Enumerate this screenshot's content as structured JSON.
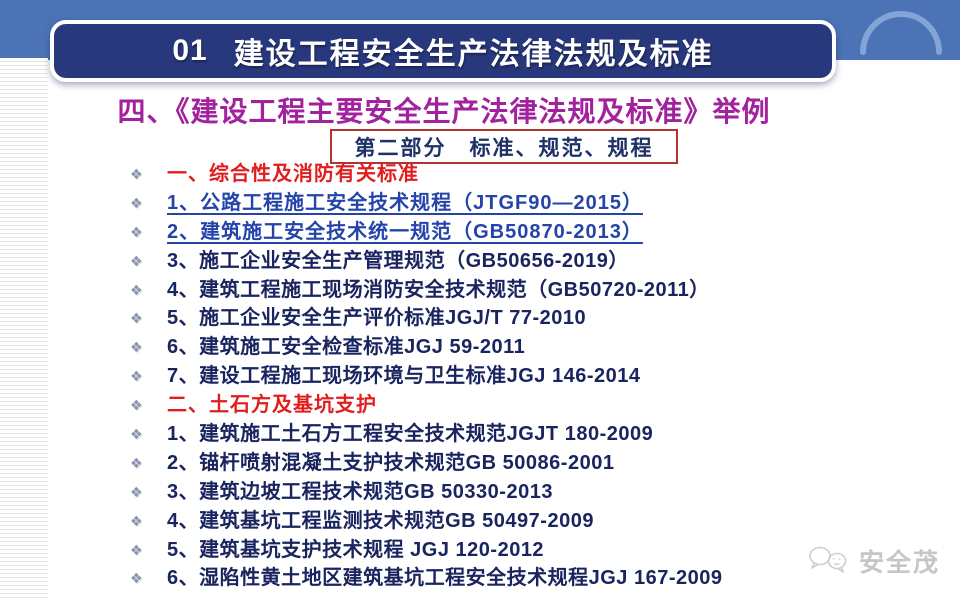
{
  "slide": {
    "banner": {
      "number": "01",
      "title": "建设工程安全生产法律法规及标准"
    },
    "heading": "四、《建设工程主要安全生产法律法规及标准》举例",
    "part_label": "第二部分　标准、规范、规程",
    "list": {
      "bullet_icon": "❖",
      "items": [
        {
          "text": "一、综合性及消防有关标准",
          "style": "section"
        },
        {
          "text": "1、公路工程施工安全技术规程（JTGF90—2015）",
          "style": "link"
        },
        {
          "text": "2、建筑施工安全技术统一规范（GB50870-2013）",
          "style": "link"
        },
        {
          "text": "3、施工企业安全生产管理规范（GB50656-2019）",
          "style": "normal"
        },
        {
          "text": "4、建筑工程施工现场消防安全技术规范（GB50720-2011）",
          "style": "normal"
        },
        {
          "text": "5、施工企业安全生产评价标准JGJ/T 77-2010",
          "style": "normal"
        },
        {
          "text": "6、建筑施工安全检查标准JGJ 59-2011",
          "style": "normal"
        },
        {
          "text": "7、建设工程施工现场环境与卫生标准JGJ 146-2014",
          "style": "normal"
        },
        {
          "text": "二、土石方及基坑支护",
          "style": "section"
        },
        {
          "text": "1、建筑施工土石方工程安全技术规范JGJT 180-2009",
          "style": "normal"
        },
        {
          "text": "2、锚杆喷射混凝土支护技术规范GB 50086-2001",
          "style": "normal"
        },
        {
          "text": "3、建筑边坡工程技术规范GB 50330-2013",
          "style": "normal"
        },
        {
          "text": "4、建筑基坑工程监测技术规范GB 50497-2009",
          "style": "normal"
        },
        {
          "text": "5、建筑基坑支护技术规程 JGJ 120-2012",
          "style": "normal"
        },
        {
          "text": "6、湿陷性黄土地区建筑基坑工程安全技术规程JGJ 167-2009",
          "style": "normal"
        }
      ]
    },
    "watermark": {
      "label": "安全茂"
    },
    "colors": {
      "top_band": "#4b73b5",
      "crescent": "#84a3d6",
      "banner_fill": "#28387c",
      "banner_text": "#ffffff",
      "heading_text": "#a2219c",
      "part_border": "#b23430",
      "part_text": "#1e3268",
      "section_text": "#e11d1d",
      "link_text": "#2444aa",
      "item_text": "#1a2560",
      "bullet": "#8a93ae",
      "watermark_gray": "#c6c6c6"
    }
  }
}
